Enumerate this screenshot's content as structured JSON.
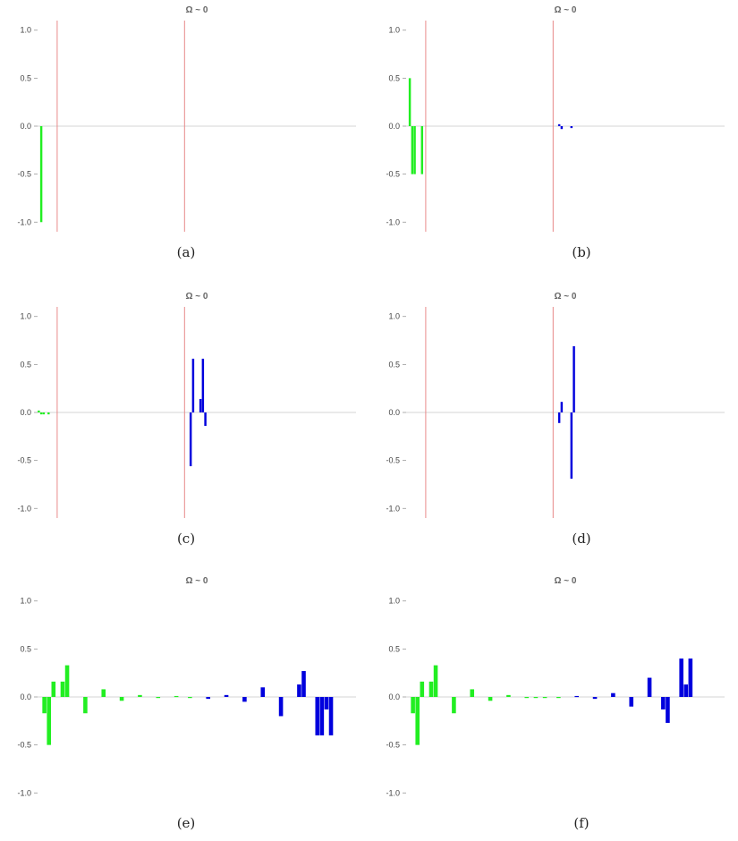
{
  "colors": {
    "green": "#22ee22",
    "blue": "#0000dd",
    "red_line": "#e88a8a",
    "axis": "#c8c8c8"
  },
  "chart_data": [
    {
      "type": "bar",
      "caption": "(a)",
      "title": "Ω ~ 0",
      "ylim": [
        -1.1,
        1.1
      ],
      "yticks": [
        1.0,
        0.5,
        0.0,
        -0.5,
        -1.0
      ],
      "ytick_labels": [
        "1.0",
        "0.5",
        "0.0",
        "-0.5",
        "-1.0"
      ],
      "xlim": [
        0,
        130
      ],
      "vlines": [
        8,
        60
      ],
      "series": [
        {
          "color": "green",
          "x": [
            1
          ],
          "values": [
            -1.0
          ]
        },
        {
          "color": "blue",
          "x": [],
          "values": []
        }
      ]
    },
    {
      "type": "bar",
      "caption": "(b)",
      "title": "Ω ~ 0",
      "ylim": [
        -1.1,
        1.1
      ],
      "yticks": [
        1.0,
        0.5,
        0.0,
        -0.5,
        -1.0
      ],
      "ytick_labels": [
        "1.0",
        "0.5",
        "0.0",
        "-0.5",
        "-1.0"
      ],
      "xlim": [
        0,
        130
      ],
      "vlines": [
        8,
        60
      ],
      "series": [
        {
          "color": "green",
          "x": [
            1,
            2,
            3,
            6
          ],
          "values": [
            0.5,
            -0.5,
            -0.5,
            -0.5
          ]
        },
        {
          "color": "blue",
          "x": [
            62,
            63,
            67
          ],
          "values": [
            0.02,
            -0.03,
            -0.02
          ]
        }
      ]
    },
    {
      "type": "bar",
      "caption": "(c)",
      "title": "Ω ~ 0",
      "ylim": [
        -1.1,
        1.1
      ],
      "yticks": [
        1.0,
        0.5,
        0.0,
        -0.5,
        -1.0
      ],
      "ytick_labels": [
        "1.0",
        "0.5",
        "0.0",
        "-0.5",
        "-1.0"
      ],
      "xlim": [
        0,
        130
      ],
      "vlines": [
        8,
        60
      ],
      "series": [
        {
          "color": "green",
          "x": [
            0,
            1,
            2,
            4
          ],
          "values": [
            0.02,
            -0.02,
            -0.02,
            -0.02
          ]
        },
        {
          "color": "blue",
          "x": [
            62,
            63,
            66,
            67,
            68
          ],
          "values": [
            -0.56,
            0.56,
            0.14,
            0.56,
            -0.14
          ]
        }
      ]
    },
    {
      "type": "bar",
      "caption": "(d)",
      "title": "Ω ~ 0",
      "ylim": [
        -1.1,
        1.1
      ],
      "yticks": [
        1.0,
        0.5,
        0.0,
        -0.5,
        -1.0
      ],
      "ytick_labels": [
        "1.0",
        "0.5",
        "0.0",
        "-0.5",
        "-1.0"
      ],
      "xlim": [
        0,
        130
      ],
      "vlines": [
        8,
        60
      ],
      "series": [
        {
          "color": "green",
          "x": [],
          "values": []
        },
        {
          "color": "blue",
          "x": [
            62,
            63,
            67,
            68
          ],
          "values": [
            -0.11,
            0.11,
            -0.69,
            0.69
          ]
        }
      ]
    },
    {
      "type": "bar",
      "caption": "(e)",
      "title": "Ω ~ 0",
      "ylim": [
        -1.1,
        1.1
      ],
      "yticks": [
        1.0,
        0.5,
        0.0,
        -0.5,
        -1.0
      ],
      "ytick_labels": [
        "1.0",
        "0.5",
        "0.0",
        "-0.5",
        "-1.0"
      ],
      "xlim": [
        0,
        70
      ],
      "vlines": [],
      "series": [
        {
          "color": "green",
          "x": [
            1,
            2,
            3,
            5,
            6,
            10,
            14,
            18,
            22,
            26,
            30,
            33
          ],
          "values": [
            -0.17,
            -0.5,
            0.16,
            0.16,
            0.33,
            -0.17,
            0.08,
            -0.04,
            0.02,
            -0.01,
            0.01,
            -0.01
          ]
        },
        {
          "color": "blue",
          "x": [
            37,
            41,
            45,
            49,
            53,
            57,
            58,
            61,
            62,
            63,
            64
          ],
          "values": [
            -0.02,
            0.02,
            -0.05,
            0.1,
            -0.2,
            0.13,
            0.27,
            -0.4,
            -0.4,
            -0.13,
            -0.4
          ]
        }
      ]
    },
    {
      "type": "bar",
      "caption": "(f)",
      "title": "Ω ~ 0",
      "ylim": [
        -1.1,
        1.1
      ],
      "yticks": [
        1.0,
        0.5,
        0.0,
        -0.5,
        -1.0
      ],
      "ytick_labels": [
        "1.0",
        "0.5",
        "0.0",
        "-0.5",
        "-1.0"
      ],
      "xlim": [
        0,
        70
      ],
      "vlines": [],
      "series": [
        {
          "color": "green",
          "x": [
            1,
            2,
            3,
            5,
            6,
            10,
            14,
            18,
            22,
            26,
            28,
            30,
            33
          ],
          "values": [
            -0.17,
            -0.5,
            0.16,
            0.16,
            0.33,
            -0.17,
            0.08,
            -0.04,
            0.02,
            -0.01,
            -0.01,
            -0.01,
            -0.01
          ]
        },
        {
          "color": "blue",
          "x": [
            37,
            41,
            45,
            49,
            53,
            56,
            57,
            60,
            61,
            62
          ],
          "values": [
            0.01,
            -0.02,
            0.04,
            -0.1,
            0.2,
            -0.13,
            -0.27,
            0.4,
            0.13,
            0.4
          ]
        }
      ]
    }
  ]
}
